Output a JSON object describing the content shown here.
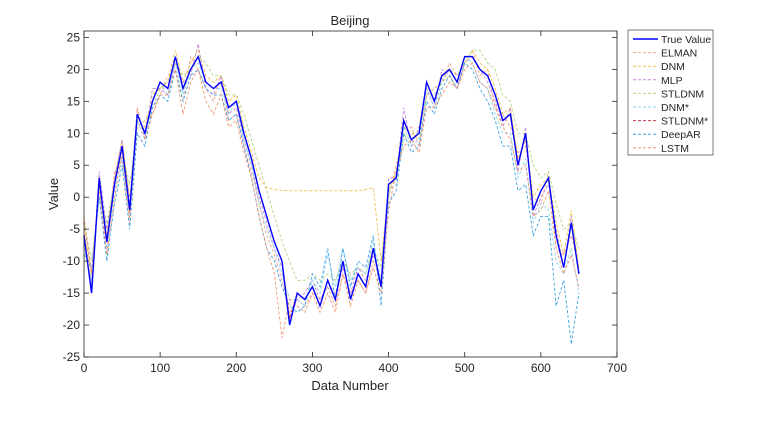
{
  "chart_data": {
    "type": "line",
    "title": "Beijing",
    "xlabel": "Data Number",
    "ylabel": "Value",
    "xlim": [
      0,
      700
    ],
    "ylim": [
      -25,
      26
    ],
    "xticks": [
      0,
      100,
      200,
      300,
      400,
      500,
      600,
      700
    ],
    "yticks": [
      -25,
      -20,
      -15,
      -10,
      -5,
      0,
      5,
      10,
      15,
      20,
      25
    ],
    "grid": false,
    "legend_position": "outside-top-right",
    "x": [
      0,
      10,
      20,
      30,
      40,
      50,
      60,
      70,
      80,
      90,
      100,
      110,
      120,
      130,
      140,
      150,
      160,
      170,
      180,
      190,
      200,
      210,
      220,
      230,
      240,
      250,
      260,
      270,
      280,
      290,
      300,
      310,
      320,
      330,
      340,
      350,
      360,
      370,
      380,
      390,
      400,
      410,
      420,
      430,
      440,
      450,
      460,
      470,
      480,
      490,
      500,
      510,
      520,
      530,
      540,
      550,
      560,
      570,
      580,
      590,
      600,
      610,
      620,
      630,
      640,
      650
    ],
    "series": [
      {
        "name": "True Value",
        "color": "#0000ff",
        "style": "solid",
        "values": [
          -6,
          -15,
          3,
          -7,
          2,
          8,
          -2,
          13,
          10,
          15,
          18,
          17,
          22,
          17,
          20,
          22,
          18,
          17,
          18,
          14,
          15,
          10,
          6,
          1,
          -3,
          -7,
          -10,
          -20,
          -15,
          -16,
          -14,
          -17,
          -13,
          -16,
          -10,
          -16,
          -12,
          -14,
          -8,
          -14,
          2,
          3,
          12,
          9,
          10,
          18,
          15,
          19,
          20,
          18,
          22,
          22,
          20,
          19,
          16,
          12,
          13,
          5,
          10,
          -2,
          1,
          3,
          -6,
          -11,
          -4,
          -12
        ]
      },
      {
        "name": "ELMAN",
        "color": "#f2a58a",
        "style": "dashed",
        "values": [
          -4,
          -12,
          1,
          -9,
          4,
          6,
          -4,
          11,
          12,
          13,
          16,
          19,
          20,
          15,
          22,
          20,
          17,
          15,
          19,
          12,
          13,
          8,
          4,
          -1,
          -6,
          -9,
          -13,
          -18,
          -16,
          -17,
          -15,
          -16,
          -14,
          -17,
          -12,
          -15,
          -13,
          -15,
          -10,
          -13,
          0,
          5,
          10,
          11,
          8,
          16,
          17,
          18,
          21,
          19,
          21,
          23,
          19,
          20,
          14,
          13,
          11,
          7,
          8,
          0,
          -1,
          4,
          -8,
          -9,
          -6,
          -11
        ]
      },
      {
        "name": "DNM",
        "color": "#f2c14e",
        "style": "dashed",
        "values": [
          -5,
          -13,
          2,
          -6,
          3,
          9,
          0,
          12,
          11,
          16,
          17,
          18,
          23,
          18,
          21,
          23,
          19,
          18,
          19,
          15,
          16,
          11,
          7,
          3,
          1.5,
          1.2,
          1.1,
          1,
          1,
          1,
          1,
          1,
          1,
          1,
          1,
          1,
          1,
          1.2,
          1.5,
          -10,
          1,
          4,
          11,
          10,
          9,
          17,
          14,
          18,
          19,
          17,
          21,
          23,
          21,
          20,
          17,
          13,
          14,
          6,
          9,
          0,
          2,
          3,
          -4,
          -9,
          -2,
          -11
        ]
      },
      {
        "name": "MLP",
        "color": "#c58ad6",
        "style": "dashed",
        "values": [
          -7,
          -14,
          4,
          -5,
          3,
          9,
          -1,
          14,
          9,
          17,
          17,
          16,
          21,
          18,
          19,
          24,
          17,
          16,
          19,
          13,
          14,
          9,
          5,
          0,
          -4,
          -8,
          -11,
          -19,
          -16,
          -15,
          -13,
          -16,
          -14,
          -15,
          -11,
          -15,
          -11,
          -13,
          -9,
          -13,
          3,
          3,
          14,
          8,
          11,
          17,
          14,
          20,
          19,
          17,
          21,
          22,
          20,
          18,
          15,
          11,
          14,
          4,
          11,
          -3,
          0,
          2,
          -5,
          -11,
          -3,
          -12
        ]
      },
      {
        "name": "STLDNM",
        "color": "#b5d585",
        "style": "dashed",
        "values": [
          -4,
          -10,
          0,
          -4,
          2,
          7,
          2,
          11,
          12,
          14,
          17,
          18,
          21,
          19,
          20,
          22,
          21,
          19,
          19,
          16,
          16,
          13,
          9,
          5,
          1,
          -3,
          -7,
          -10,
          -13,
          -13,
          -12,
          -13,
          -12,
          -13,
          -10,
          -12,
          -11,
          -12,
          -8,
          -11,
          0,
          4,
          9,
          10,
          10,
          16,
          16,
          18,
          20,
          19,
          21,
          23,
          23,
          21,
          20,
          16,
          15,
          10,
          10,
          5,
          3,
          4,
          -1,
          -5,
          -4,
          -8
        ]
      },
      {
        "name": "DNM*",
        "color": "#8fd3ef",
        "style": "dashed",
        "values": [
          -8,
          -13,
          2,
          -8,
          1,
          6,
          -3,
          12,
          9,
          15,
          18,
          16,
          21,
          16,
          20,
          21,
          18,
          17,
          17,
          13,
          15,
          9,
          5,
          -1,
          -5,
          -8,
          -12,
          -16,
          -16,
          -17,
          -13,
          -15,
          -9,
          -14,
          -8,
          -13,
          -11,
          -12,
          -7,
          -13,
          1,
          2,
          11,
          8,
          9,
          17,
          14,
          18,
          20,
          18,
          22,
          21,
          18,
          17,
          13,
          10,
          10,
          3,
          6,
          -4,
          -1,
          -2,
          -10,
          -12,
          -8,
          -15
        ]
      },
      {
        "name": "STLDNM*",
        "color": "#c23a4e",
        "style": "dashed",
        "values": [
          -6,
          -15,
          3,
          -7,
          2,
          8,
          -2,
          13,
          10,
          15,
          18,
          17,
          22,
          17,
          20,
          22,
          18,
          17,
          18,
          14,
          15,
          10,
          6,
          1,
          -3,
          -7,
          -10,
          -19,
          -15,
          -16,
          -14,
          -17,
          -13,
          -16,
          -10,
          -16,
          -12,
          -14,
          -8,
          -14,
          2,
          3,
          12,
          9,
          10,
          18,
          15,
          19,
          20,
          18,
          22,
          22,
          20,
          19,
          16,
          12,
          13,
          5,
          10,
          -2,
          1,
          3,
          -6,
          -11,
          -4,
          -12
        ]
      },
      {
        "name": "DeepAR",
        "color": "#3fa3e0",
        "style": "dashed",
        "values": [
          -9,
          -11,
          0,
          -10,
          -1,
          5,
          -5,
          10,
          8,
          14,
          16,
          15,
          20,
          15,
          19,
          20,
          17,
          16,
          16,
          12,
          13,
          8,
          3,
          -3,
          -8,
          -10,
          -14,
          -17,
          -18,
          -17,
          -12,
          -14,
          -8,
          -16,
          -8,
          -14,
          -10,
          -11,
          -6,
          -17,
          -1,
          1,
          10,
          7,
          8,
          15,
          13,
          17,
          19,
          17,
          21,
          20,
          17,
          15,
          12,
          8,
          8,
          1,
          2,
          -6,
          -3,
          -3,
          -17,
          -13,
          -23,
          -15
        ]
      },
      {
        "name": "LSTM",
        "color": "#f09575",
        "style": "dashed",
        "values": [
          -3,
          -12,
          2,
          -9,
          0,
          7,
          -3,
          14,
          9,
          13,
          16,
          16,
          20,
          13,
          18,
          20,
          15,
          13,
          16,
          11,
          12,
          7,
          3,
          -3,
          -8,
          -12,
          -22,
          -16,
          -17,
          -18,
          -15,
          -18,
          -15,
          -18,
          -12,
          -17,
          -13,
          -15,
          -11,
          -15,
          -2,
          4,
          8,
          9,
          7,
          14,
          14,
          16,
          18,
          17,
          20,
          21,
          18,
          17,
          14,
          11,
          9,
          4,
          5,
          -3,
          -2,
          1,
          -8,
          -12,
          -9,
          -14
        ]
      }
    ]
  }
}
